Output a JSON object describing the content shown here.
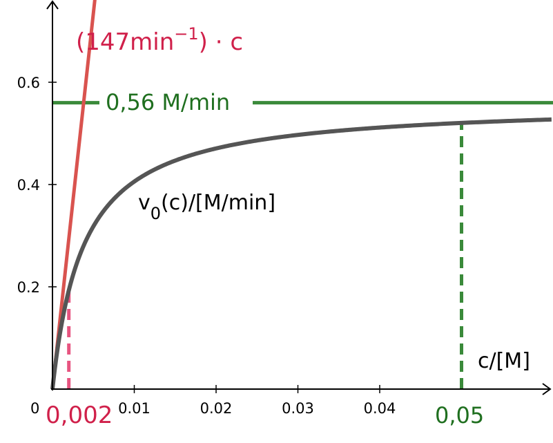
{
  "chart_data": {
    "type": "line",
    "title": "",
    "xlabel": "c/[M]",
    "ylabel": "",
    "xlim": [
      0,
      0.061
    ],
    "ylim": [
      0,
      0.75
    ],
    "origin_label": "0",
    "x_ticks": [
      {
        "value": 0.01,
        "label": "0.01"
      },
      {
        "value": 0.02,
        "label": "0.02"
      },
      {
        "value": 0.03,
        "label": "0.03"
      },
      {
        "value": 0.04,
        "label": "0.04"
      }
    ],
    "y_ticks": [
      {
        "value": 0.2,
        "label": "0.2"
      },
      {
        "value": 0.4,
        "label": "0.4"
      },
      {
        "value": 0.6,
        "label": "0.6"
      }
    ],
    "grid": false,
    "series": [
      {
        "name": "v0(c)/[M/min]",
        "label_main": "v",
        "label_sub": "0",
        "label_rest": "(c)/[M/min]",
        "kind": "michaelis-menten",
        "vmax": 0.56,
        "km": 0.0038,
        "color": "#555555"
      },
      {
        "name": "(147min^-1)·c",
        "label_pre": "(147min",
        "label_sup": "−1",
        "label_post": ") · c",
        "kind": "linear",
        "slope": 147,
        "color": "#d9534f"
      },
      {
        "name": "0,56 M/min",
        "label": "0,56 M/min",
        "kind": "horizontal",
        "y": 0.56,
        "color": "#3a8a3a"
      }
    ],
    "annotations": [
      {
        "label": "0,002",
        "x": 0.002,
        "color": "#e75480",
        "text_color": "#d0204a"
      },
      {
        "label": "0,05",
        "x": 0.05,
        "color": "#3a8a3a",
        "text_color": "#1f6f1f"
      }
    ]
  }
}
